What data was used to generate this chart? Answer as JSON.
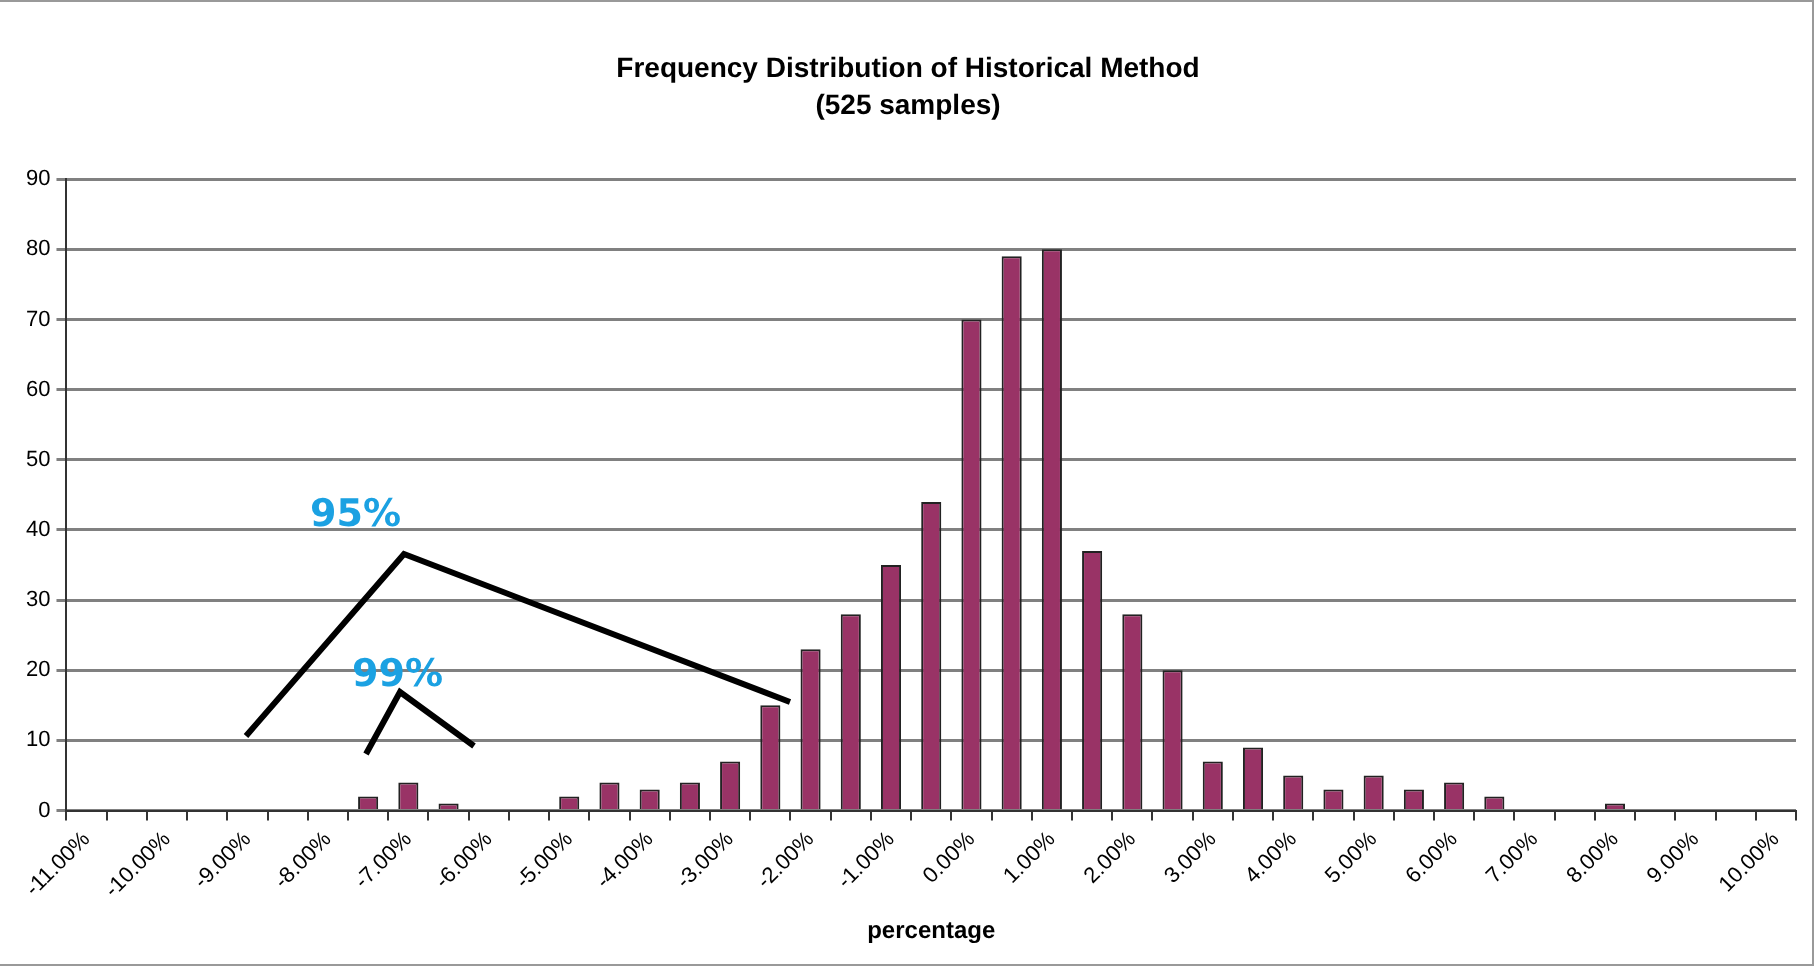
{
  "chart_data": {
    "type": "bar",
    "title": "Frequency Distribution of Historical Method",
    "subtitle": "(525 samples)",
    "xlabel": "percentage",
    "categories": [
      "-11.00%",
      null,
      "-10.00%",
      null,
      "-9.00%",
      null,
      "-8.00%",
      null,
      "-7.00%",
      null,
      "-6.00%",
      null,
      "-5.00%",
      null,
      "-4.00%",
      null,
      "-3.00%",
      null,
      "-2.00%",
      null,
      "-1.00%",
      null,
      "0.00%",
      null,
      "1.00%",
      null,
      "2.00%",
      null,
      "3.00%",
      null,
      "4.00%",
      null,
      "5.00%",
      null,
      "6.00%",
      null,
      "7.00%",
      null,
      "8.00%",
      null,
      "9.00%",
      null,
      "10.00%"
    ],
    "values": [
      0,
      0,
      0,
      0,
      0,
      0,
      0,
      2,
      4,
      1,
      0,
      0,
      2,
      4,
      3,
      4,
      7,
      15,
      23,
      28,
      35,
      44,
      70,
      79,
      80,
      37,
      28,
      20,
      7,
      9,
      5,
      3,
      5,
      3,
      4,
      2,
      0,
      0,
      1,
      0,
      0,
      0,
      0
    ],
    "color": "#993366",
    "ylim": [
      0,
      90
    ],
    "yticks": [
      0,
      10,
      20,
      30,
      40,
      50,
      60,
      70,
      80,
      90
    ],
    "grid": "y",
    "annotations": [
      "95%",
      "99%"
    ]
  }
}
